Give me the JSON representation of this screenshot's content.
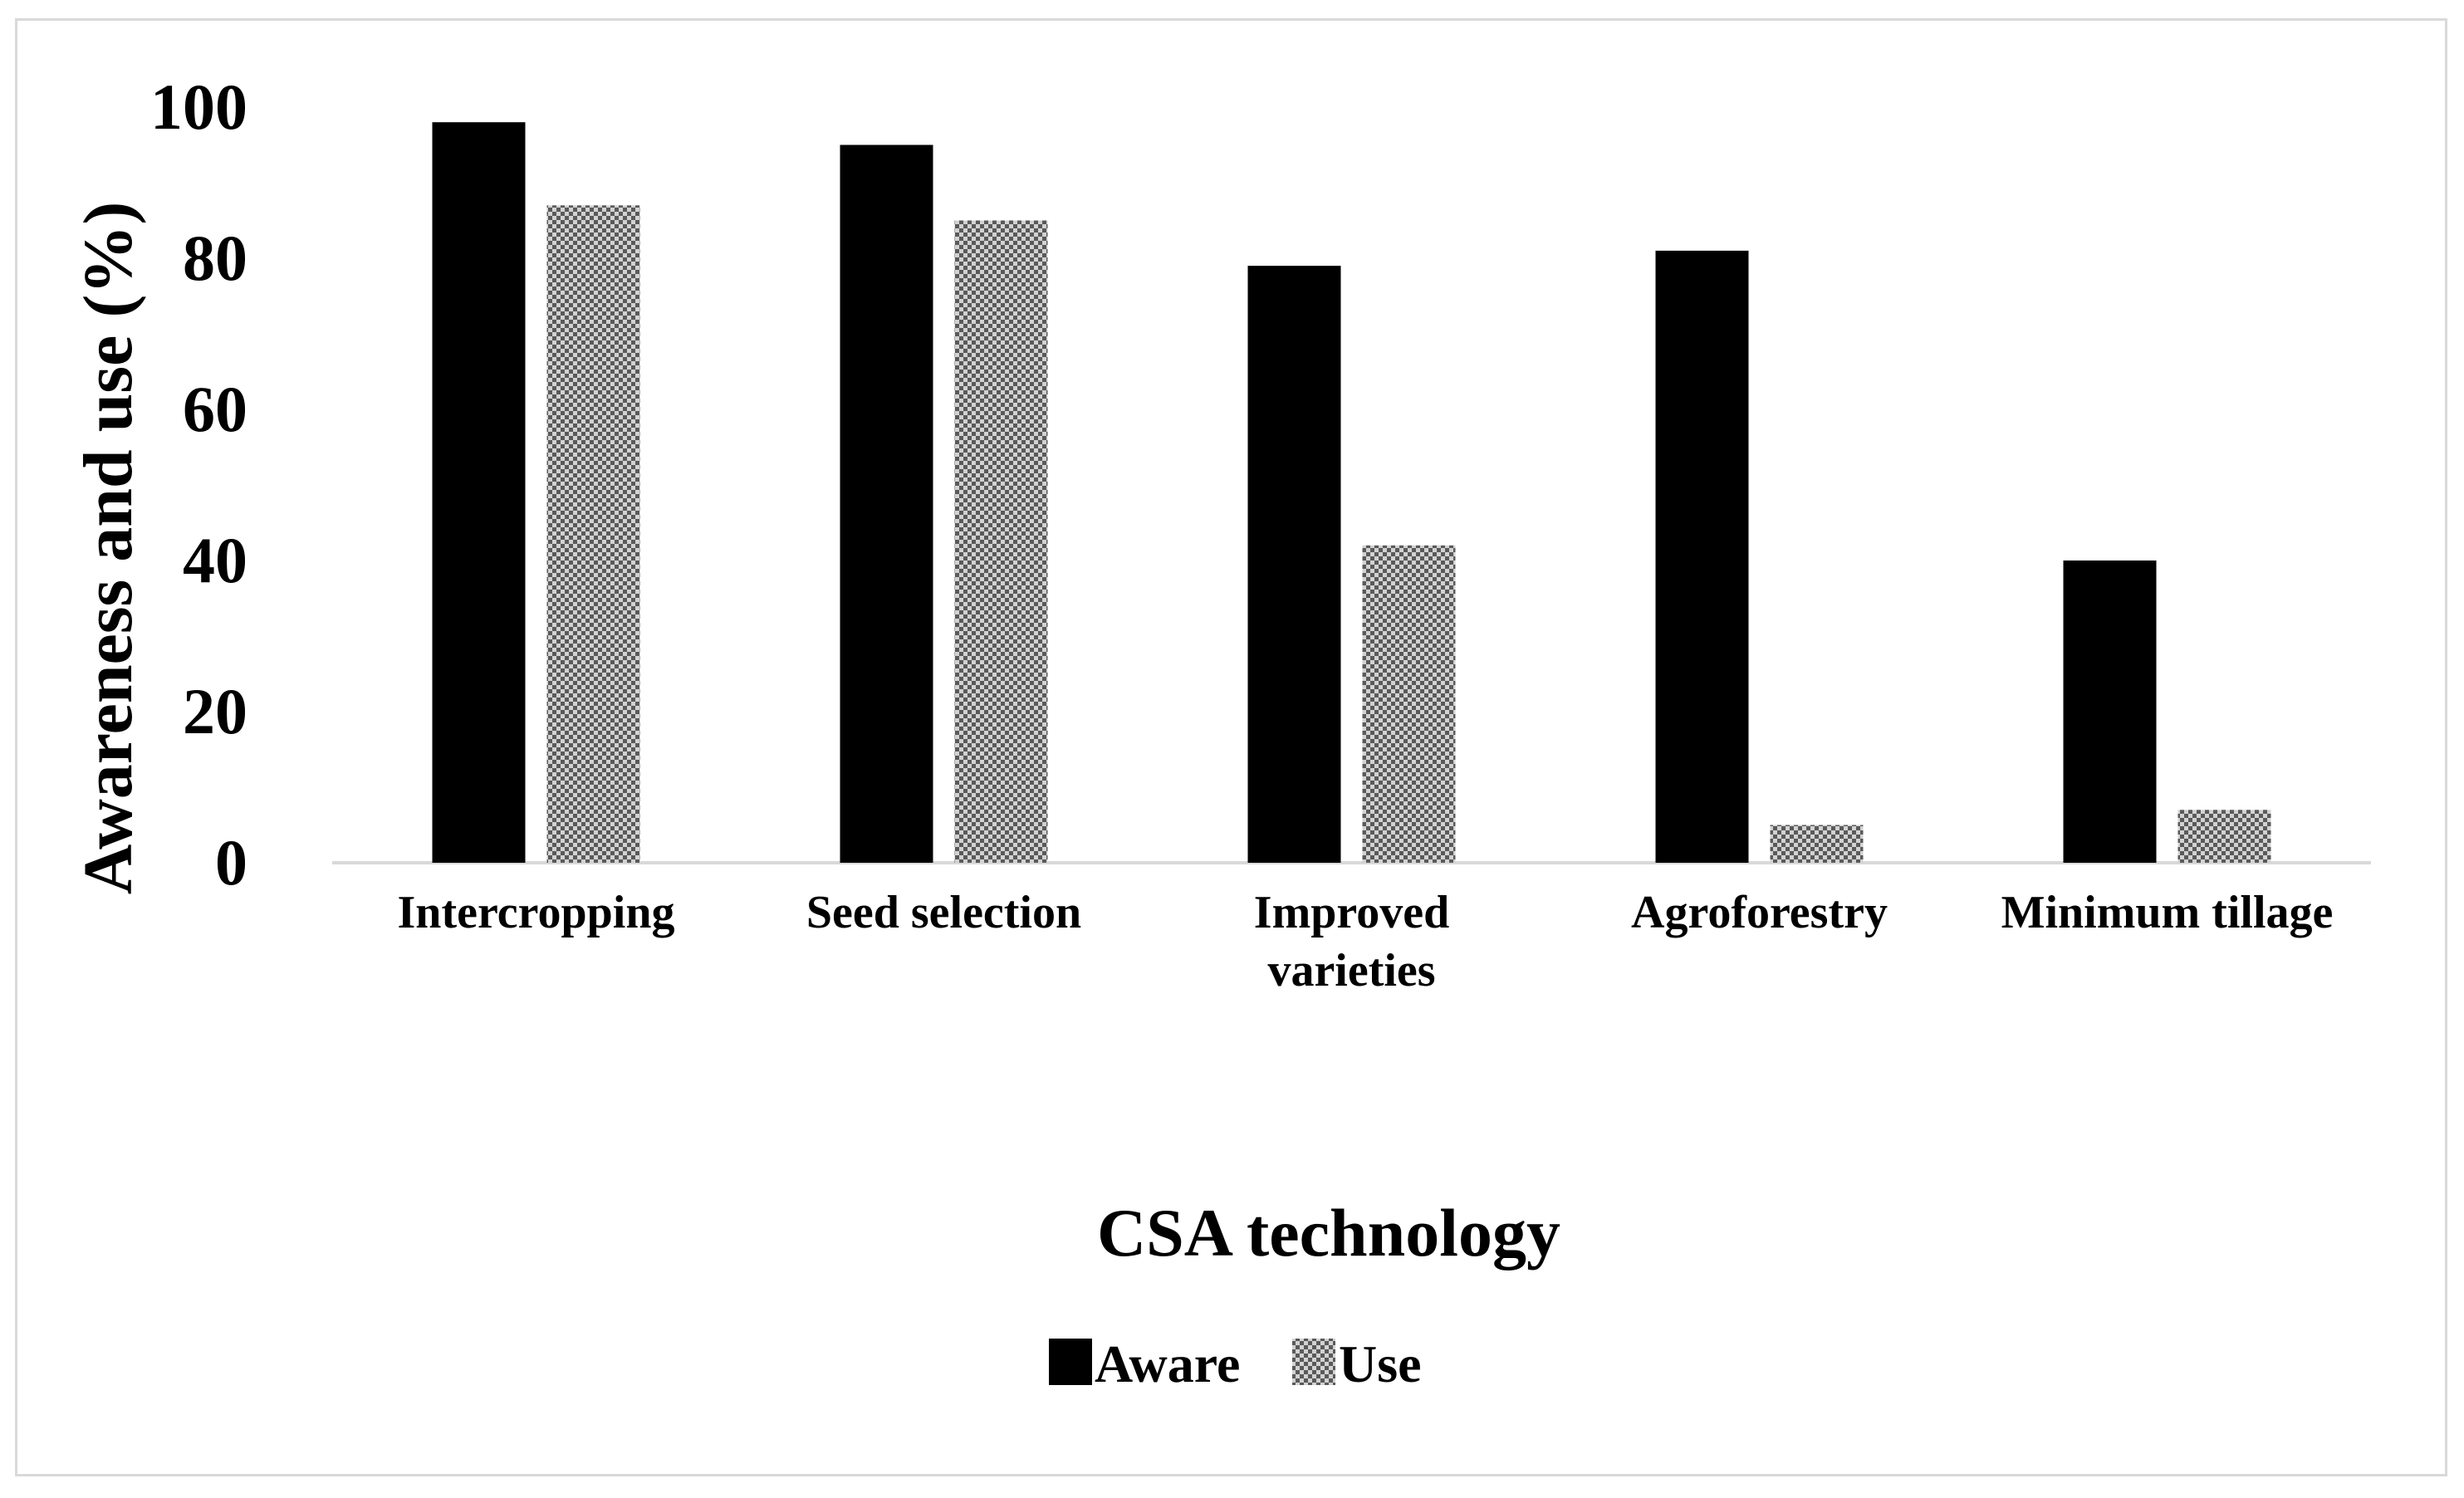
{
  "chart_data": {
    "type": "bar",
    "title": "",
    "xlabel": "CSA technology",
    "ylabel": "Awareness and use (%)",
    "ylim": [
      0,
      100
    ],
    "yticks": [
      0,
      20,
      40,
      60,
      80,
      100
    ],
    "categories": [
      [
        "Intercropping"
      ],
      [
        "Seed selection"
      ],
      [
        "Improved",
        "varieties"
      ],
      [
        "Agroforestry"
      ],
      [
        "Minimum tillage"
      ]
    ],
    "series": [
      {
        "name": "Aware",
        "values": [
          98,
          95,
          79,
          81,
          40
        ],
        "color": "#000000",
        "pattern": "solid"
      },
      {
        "name": "Use",
        "values": [
          87,
          85,
          42,
          5,
          7
        ],
        "color": "#9a9a9a",
        "pattern": "checker"
      }
    ],
    "legend_position": "bottom-center",
    "grid": false
  }
}
